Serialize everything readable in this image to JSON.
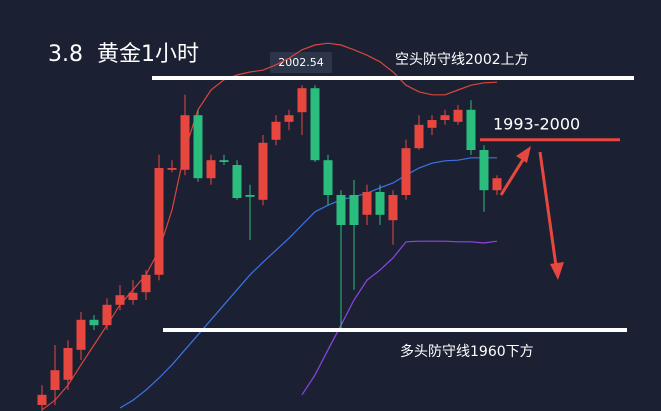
{
  "chart_data": {
    "type": "candlestick",
    "title": "3.8  黄金1小时",
    "ylim": [
      1946.5,
      2015
    ],
    "up_color": "#e8473f",
    "down_color": "#2bbd7e",
    "open": [
      1947.5,
      1950,
      1951.7,
      1956.7,
      1961.7,
      1960.8,
      1964.2,
      1965,
      1966.3,
      1969.2,
      1986.7,
      1986.7,
      1995.8,
      1985.3,
      1988.3,
      1987.5,
      1982.5,
      1981.7,
      1991.7,
      1994.7,
      1996.3,
      2000.3,
      1988.3,
      1982.5,
      1982.5,
      1979.2,
      1983,
      1978.3,
      1982.5,
      1990.3,
      1993.7,
      1995,
      1994.7,
      1996.7,
      1990,
      1983.3
    ],
    "high": [
      1950.8,
      1957.5,
      1958.3,
      1963,
      1962.5,
      1965.3,
      1967.5,
      1968.3,
      1970,
      1989.2,
      1988.3,
      1999.2,
      1996.7,
      1989.2,
      1989.2,
      1988.3,
      1984.2,
      1992.5,
      1995.8,
      1996.7,
      2000.8,
      2000.8,
      1989.2,
      1983.3,
      1985,
      1984.2,
      1984.2,
      1983.3,
      1991.7,
      1995.8,
      1995.8,
      1996.7,
      1997.5,
      1998.3,
      1990.8,
      1985.8
    ],
    "low": [
      1946.5,
      1947.5,
      1950,
      1955,
      1960,
      1960,
      1963.3,
      1964.2,
      1965,
      1968.3,
      1986.3,
      1985.8,
      1984.7,
      1984.2,
      1987.5,
      1981.7,
      1975,
      1980.8,
      1990.8,
      1993.3,
      1992.5,
      1988,
      1980.8,
      1960,
      1966.7,
      1977.5,
      1977.5,
      1974.2,
      1981.7,
      1990,
      1992.5,
      1994.2,
      1994.2,
      1989.2,
      1979.7,
      1982.5
    ],
    "close": [
      1949.2,
      1953.3,
      1957,
      1961.7,
      1960.8,
      1964.2,
      1965.8,
      1966.2,
      1969.2,
      1987,
      1987,
      1995.8,
      1985.3,
      1988.3,
      1988,
      1982,
      1982.2,
      1991.2,
      1994.7,
      1995.8,
      2000.3,
      1988.3,
      1982.5,
      1977.5,
      1977.5,
      1983,
      1979.2,
      1982.5,
      1990.3,
      1994.2,
      1995,
      1995.8,
      1996.7,
      1990,
      1983.3,
      1985.3
    ],
    "series": [
      {
        "color": "#d9463a",
        "values": [
          1946.7,
          1948.3,
          1950.8,
          1954.2,
          1957.5,
          1960.8,
          1964.2,
          1966.7,
          1969.2,
          1973.3,
          1980,
          1990,
          1996.7,
          2000,
          2001.7,
          2002.5,
          2003,
          2003.3,
          2004.2,
          2005.3,
          2006.7,
          2007.5,
          2007.8,
          2007.5,
          2006.7,
          2005.8,
          2004.7,
          2003,
          2000.8,
          1999.7,
          1999.2,
          1999.2,
          2000,
          2000.8,
          2001.2,
          2001.3
        ]
      },
      {
        "color": "#3d72e6",
        "values": [
          null,
          null,
          null,
          null,
          null,
          null,
          1947,
          1948.3,
          1950,
          1952,
          1954.2,
          1956.7,
          1959.2,
          1961.7,
          1964.2,
          1966.7,
          1969.2,
          1971.3,
          1973.3,
          1975.3,
          1977.5,
          1979.7,
          1980.8,
          1981.7,
          1982.2,
          1982.8,
          1983.7,
          1984.5,
          1985.8,
          1987,
          1987.8,
          1988.2,
          1988.3,
          1988.7,
          1988.7,
          1988.7
        ]
      },
      {
        "color": "#8e44e6",
        "values": [
          null,
          null,
          null,
          null,
          null,
          null,
          null,
          null,
          null,
          null,
          null,
          null,
          null,
          null,
          null,
          null,
          null,
          null,
          null,
          null,
          1949.2,
          1952.5,
          1956.7,
          1960.8,
          1965,
          1968.3,
          1970,
          1972,
          1974.7,
          1974.8,
          1974.8,
          1974.8,
          1974.7,
          1974.7,
          1974.5,
          1974.8
        ]
      }
    ],
    "peak_label": "2002.54",
    "levels": [
      {
        "value": 2002,
        "label": "空头防守线2002上方",
        "color": "#ffffff"
      },
      {
        "value": 1960,
        "label": "多头防守线1960下方",
        "color": "#ffffff"
      },
      {
        "value": 1991.7,
        "label": "1993-2000",
        "color": "#e8473f"
      }
    ]
  }
}
